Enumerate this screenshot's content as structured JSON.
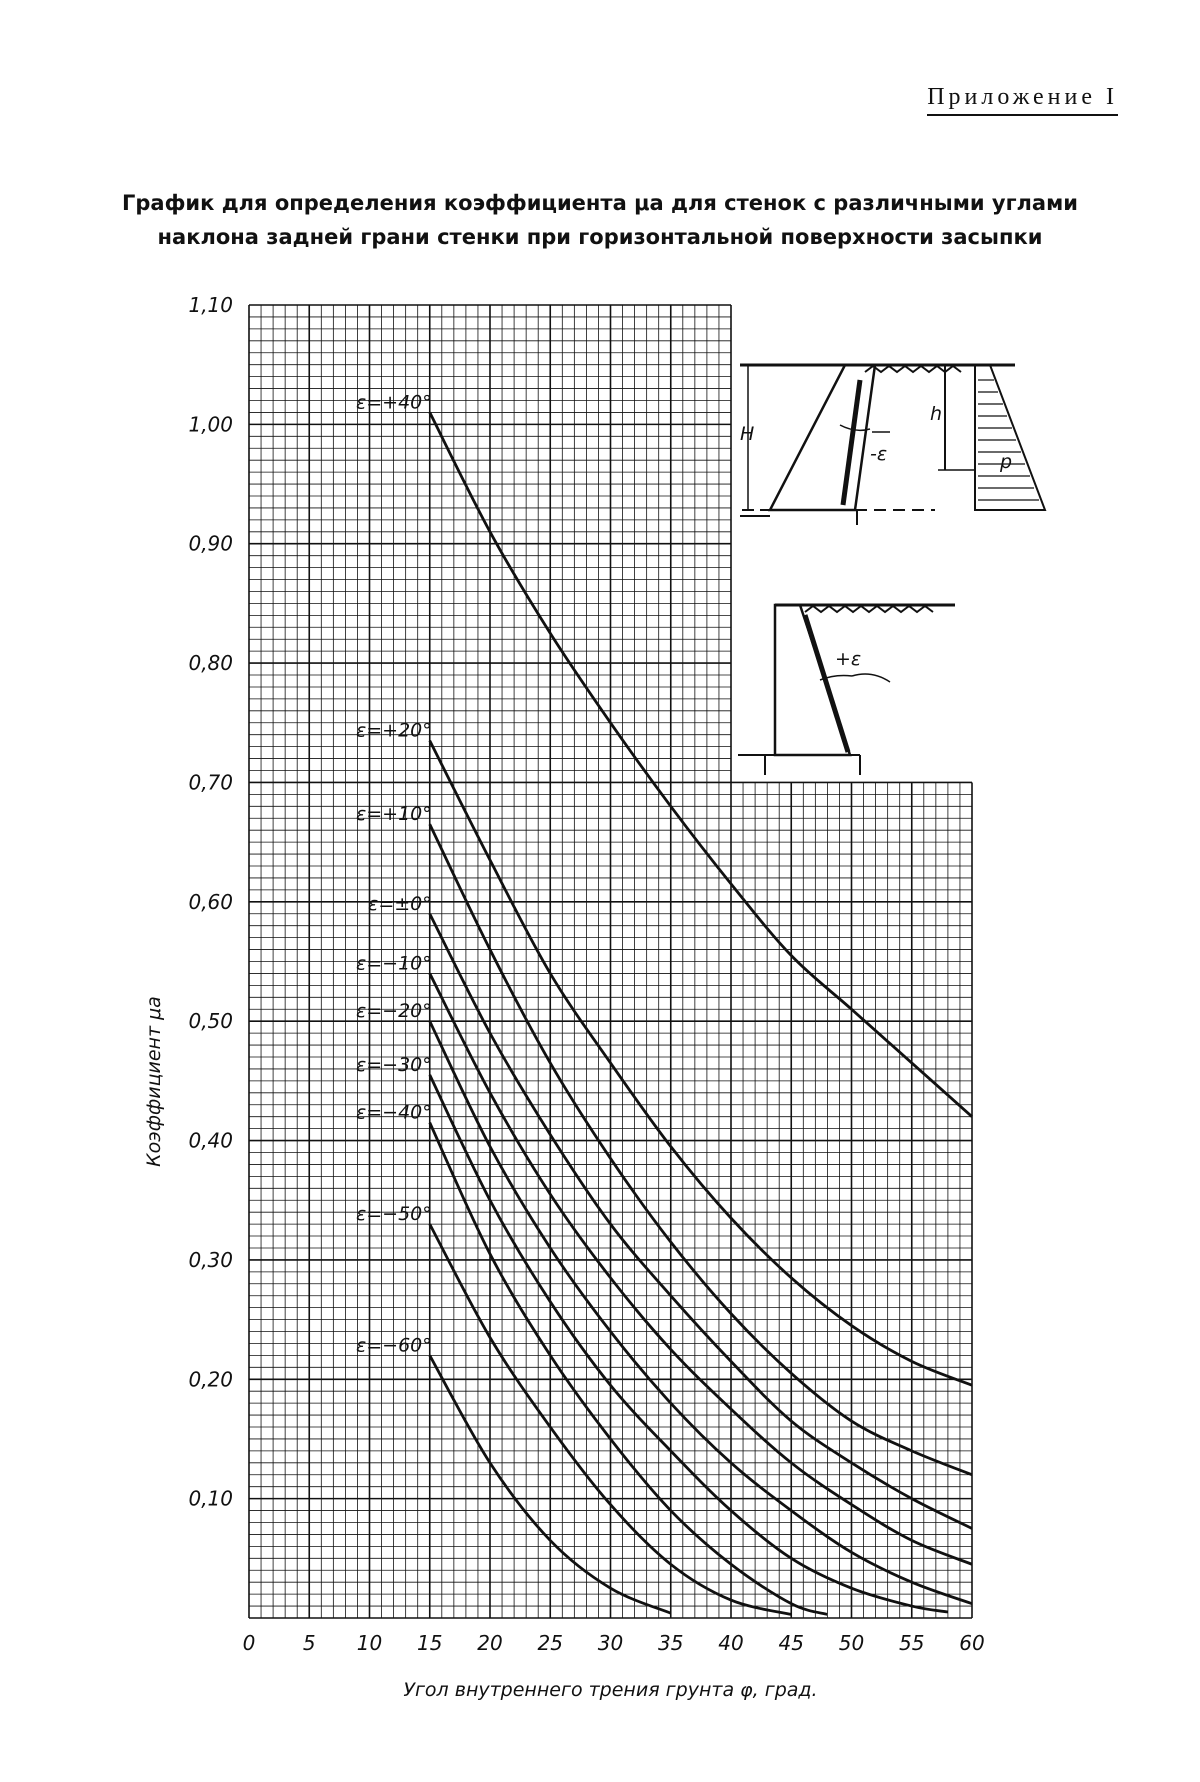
{
  "header": {
    "appendix": "Приложение I",
    "title_line1": "График для определения коэффициента μa для стенок с различными углами",
    "title_line2": "наклона задней грани стенки при горизонтальной поверхности засыпки"
  },
  "chart_data": {
    "type": "line",
    "xlabel": "Угол внутреннего трения грунта φ, град.",
    "ylabel": "Коэффициент μa",
    "xlim": [
      0,
      60
    ],
    "ylim": [
      0,
      1.1
    ],
    "x_ticks": [
      "0",
      "5",
      "10",
      "15",
      "20",
      "25",
      "30",
      "35",
      "40",
      "45",
      "50",
      "55",
      "60"
    ],
    "y_ticks": [
      "0,10",
      "0,20",
      "0,30",
      "0,40",
      "0,50",
      "0,60",
      "0,70",
      "0,80",
      "0,90",
      "1,00",
      "1,10"
    ],
    "grid": true,
    "series": [
      {
        "name": "ε=+40°",
        "x": [
          15,
          20,
          25,
          30,
          35,
          40,
          45,
          50,
          55,
          60
        ],
        "y": [
          1.01,
          0.91,
          0.825,
          0.75,
          0.68,
          0.615,
          0.555,
          0.51,
          0.465,
          0.42
        ]
      },
      {
        "name": "ε=+20°",
        "x": [
          15,
          20,
          25,
          30,
          35,
          40,
          45,
          50,
          55,
          60
        ],
        "y": [
          0.735,
          0.635,
          0.54,
          0.465,
          0.395,
          0.335,
          0.285,
          0.245,
          0.215,
          0.195
        ]
      },
      {
        "name": "ε=+10°",
        "x": [
          15,
          20,
          25,
          30,
          35,
          40,
          45,
          50,
          55,
          60
        ],
        "y": [
          0.665,
          0.56,
          0.465,
          0.385,
          0.315,
          0.255,
          0.205,
          0.165,
          0.14,
          0.12
        ]
      },
      {
        "name": "ε=±0°",
        "x": [
          15,
          20,
          25,
          30,
          35,
          40,
          45,
          50,
          55,
          60
        ],
        "y": [
          0.59,
          0.49,
          0.405,
          0.33,
          0.27,
          0.215,
          0.165,
          0.13,
          0.1,
          0.075
        ]
      },
      {
        "name": "ε=−10°",
        "x": [
          15,
          20,
          25,
          30,
          35,
          40,
          45,
          50,
          55,
          60
        ],
        "y": [
          0.54,
          0.44,
          0.355,
          0.285,
          0.225,
          0.175,
          0.13,
          0.095,
          0.065,
          0.045
        ]
      },
      {
        "name": "ε=−20°",
        "x": [
          15,
          20,
          25,
          30,
          35,
          40,
          45,
          50,
          55,
          60
        ],
        "y": [
          0.5,
          0.395,
          0.31,
          0.24,
          0.18,
          0.13,
          0.09,
          0.055,
          0.03,
          0.012
        ]
      },
      {
        "name": "ε=−30°",
        "x": [
          15,
          20,
          25,
          30,
          35,
          40,
          45,
          50,
          55,
          58
        ],
        "y": [
          0.455,
          0.35,
          0.265,
          0.195,
          0.14,
          0.09,
          0.05,
          0.025,
          0.01,
          0.005
        ]
      },
      {
        "name": "ε=−40°",
        "x": [
          15,
          20,
          25,
          30,
          35,
          40,
          45,
          48
        ],
        "y": [
          0.415,
          0.305,
          0.22,
          0.15,
          0.09,
          0.045,
          0.012,
          0.003
        ]
      },
      {
        "name": "ε=−50°",
        "x": [
          15,
          20,
          25,
          30,
          35,
          40,
          45
        ],
        "y": [
          0.33,
          0.235,
          0.16,
          0.095,
          0.045,
          0.015,
          0.003
        ]
      },
      {
        "name": "ε=−60°",
        "x": [
          15,
          20,
          25,
          30,
          35
        ],
        "y": [
          0.22,
          0.13,
          0.065,
          0.025,
          0.004
        ]
      }
    ],
    "inset_labels": {
      "upper_H": "H",
      "upper_h": "h",
      "upper_eps": "-ε",
      "upper_p": "p",
      "lower_eps": "+ε"
    }
  }
}
